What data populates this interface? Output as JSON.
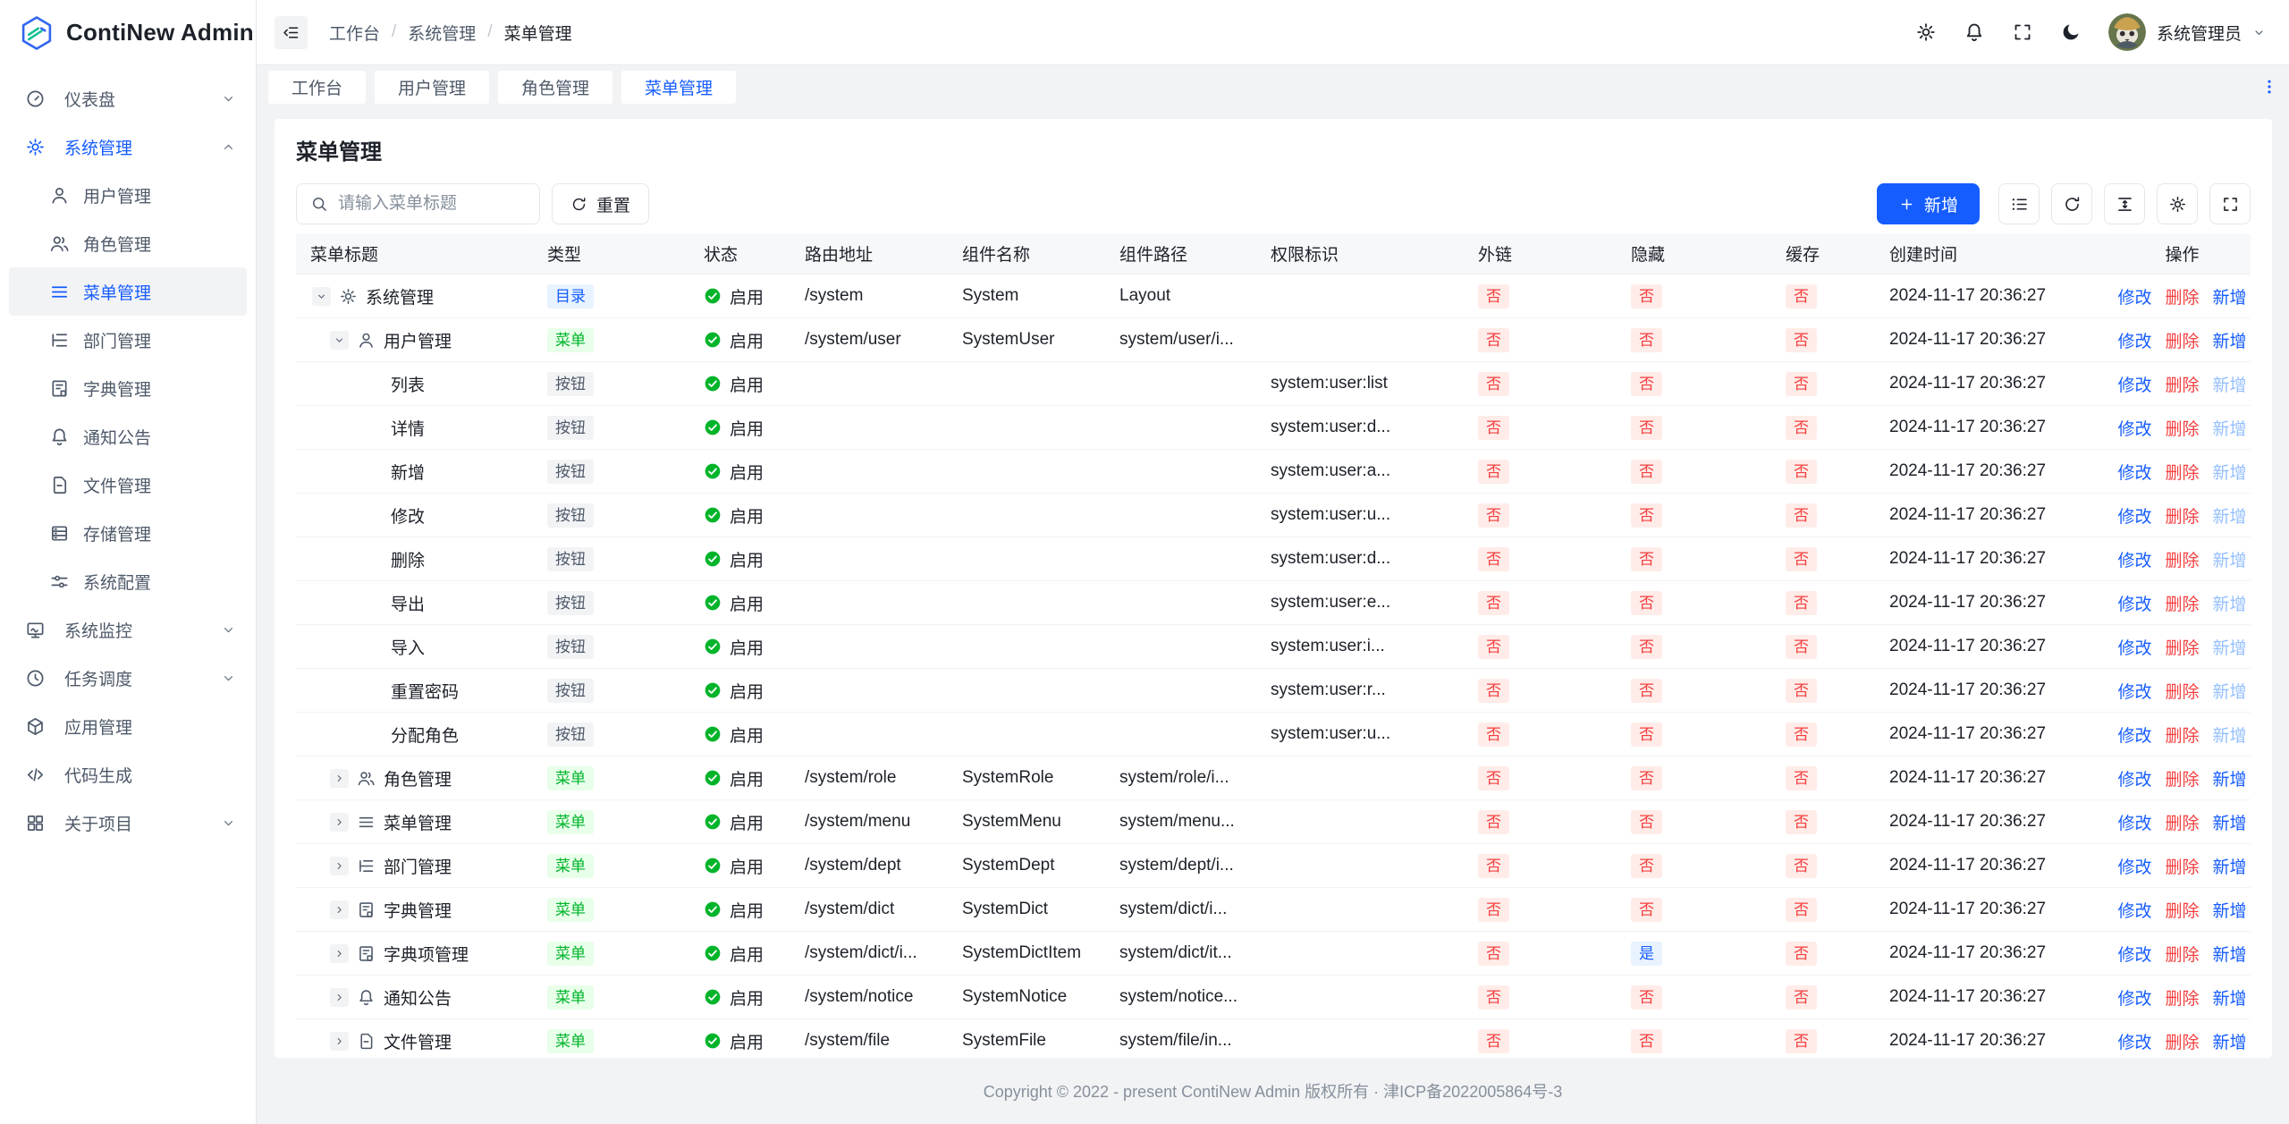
{
  "colors": {
    "primary": "#165dff",
    "success": "#00b42a",
    "danger": "#f53f3f",
    "tag_blue_bg": "#e8f3ff",
    "tag_green_bg": "#e8ffea",
    "tag_red_bg": "#ffece8",
    "tag_gray_bg": "#f2f3f5"
  },
  "app": {
    "title": "ContiNew Admin",
    "footer": "Copyright © 2022 - present ContiNew Admin 版权所有 · 津ICP备2022005864号-3"
  },
  "sidebar": {
    "items": [
      {
        "name": "dashboard",
        "icon": "dashboard",
        "label": "仪表盘",
        "chevron": "down"
      },
      {
        "name": "system-management",
        "icon": "gear",
        "label": "系统管理",
        "chevron": "up",
        "active": true,
        "children": [
          {
            "name": "user-management",
            "icon": "user",
            "label": "用户管理"
          },
          {
            "name": "role-management",
            "icon": "users",
            "label": "角色管理"
          },
          {
            "name": "menu-management",
            "icon": "menu",
            "label": "菜单管理",
            "active": true
          },
          {
            "name": "dept-management",
            "icon": "tree",
            "label": "部门管理"
          },
          {
            "name": "dict-management",
            "icon": "dict",
            "label": "字典管理"
          },
          {
            "name": "notice",
            "icon": "bell",
            "label": "通知公告"
          },
          {
            "name": "file-management",
            "icon": "file",
            "label": "文件管理"
          },
          {
            "name": "storage-management",
            "icon": "storage",
            "label": "存储管理"
          },
          {
            "name": "system-config",
            "icon": "sliders",
            "label": "系统配置"
          }
        ]
      },
      {
        "name": "system-monitor",
        "icon": "monitor",
        "label": "系统监控",
        "chevron": "down"
      },
      {
        "name": "task-schedule",
        "icon": "clock",
        "label": "任务调度",
        "chevron": "down"
      },
      {
        "name": "app-management",
        "icon": "cube",
        "label": "应用管理"
      },
      {
        "name": "code-generation",
        "icon": "code",
        "label": "代码生成"
      },
      {
        "name": "about-project",
        "icon": "grid",
        "label": "关于项目",
        "chevron": "down"
      }
    ]
  },
  "topbar": {
    "breadcrumb": [
      "工作台",
      "系统管理",
      "菜单管理"
    ],
    "separator": "/",
    "actions": [
      {
        "icon": "gear",
        "name": "settings-button"
      },
      {
        "icon": "bell",
        "name": "notifications-button"
      },
      {
        "icon": "fullscreen",
        "name": "fullscreen-button"
      },
      {
        "icon": "moon",
        "name": "dark-mode-button"
      }
    ],
    "user": {
      "name": "系统管理员"
    }
  },
  "tabs": {
    "active_index": 3,
    "items": [
      {
        "label": "工作台",
        "name": "workspace"
      },
      {
        "label": "用户管理",
        "name": "user-management"
      },
      {
        "label": "角色管理",
        "name": "role-management"
      },
      {
        "label": "菜单管理",
        "name": "menu-management"
      }
    ]
  },
  "page": {
    "title": "菜单管理",
    "search_placeholder": "请输入菜单标题",
    "reset_label": "重置",
    "add_label": "新增",
    "tool_buttons": [
      {
        "icon": "list",
        "name": "list-view-button"
      },
      {
        "icon": "refresh",
        "name": "refresh-button"
      },
      {
        "icon": "line-height",
        "name": "row-height-button"
      },
      {
        "icon": "gear",
        "name": "column-settings-button"
      },
      {
        "icon": "fullscreen",
        "name": "table-fullscreen-button"
      }
    ]
  },
  "table": {
    "columns": [
      {
        "key": "title",
        "label": "菜单标题"
      },
      {
        "key": "type",
        "label": "类型"
      },
      {
        "key": "status",
        "label": "状态"
      },
      {
        "key": "route",
        "label": "路由地址"
      },
      {
        "key": "component",
        "label": "组件名称"
      },
      {
        "key": "path",
        "label": "组件路径"
      },
      {
        "key": "perm",
        "label": "权限标识"
      },
      {
        "key": "external",
        "label": "外链"
      },
      {
        "key": "hidden",
        "label": "隐藏"
      },
      {
        "key": "cache",
        "label": "缓存"
      },
      {
        "key": "created",
        "label": "创建时间"
      },
      {
        "key": "actions",
        "label": "操作"
      }
    ],
    "action_labels": {
      "edit": "修改",
      "delete": "删除",
      "add": "新增"
    },
    "rows": [
      {
        "level": 0,
        "expand": "down",
        "icon": "gear",
        "title": "系统管理",
        "type": "目录",
        "status": "启用",
        "route": "/system",
        "component": "System",
        "path": "Layout",
        "perm": "",
        "external": "否",
        "hidden": "否",
        "cache": "否",
        "created": "2024-11-17 20:36:27",
        "can_add": true
      },
      {
        "level": 1,
        "expand": "down",
        "icon": "user",
        "title": "用户管理",
        "type": "菜单",
        "status": "启用",
        "route": "/system/user",
        "component": "SystemUser",
        "path": "system/user/i...",
        "perm": "",
        "external": "否",
        "hidden": "否",
        "cache": "否",
        "created": "2024-11-17 20:36:27",
        "can_add": true
      },
      {
        "level": 2,
        "expand": null,
        "icon": null,
        "title": "列表",
        "type": "按钮",
        "status": "启用",
        "route": "",
        "component": "",
        "path": "",
        "perm": "system:user:list",
        "external": "否",
        "hidden": "否",
        "cache": "否",
        "created": "2024-11-17 20:36:27",
        "can_add": false
      },
      {
        "level": 2,
        "expand": null,
        "icon": null,
        "title": "详情",
        "type": "按钮",
        "status": "启用",
        "route": "",
        "component": "",
        "path": "",
        "perm": "system:user:d...",
        "external": "否",
        "hidden": "否",
        "cache": "否",
        "created": "2024-11-17 20:36:27",
        "can_add": false
      },
      {
        "level": 2,
        "expand": null,
        "icon": null,
        "title": "新增",
        "type": "按钮",
        "status": "启用",
        "route": "",
        "component": "",
        "path": "",
        "perm": "system:user:a...",
        "external": "否",
        "hidden": "否",
        "cache": "否",
        "created": "2024-11-17 20:36:27",
        "can_add": false
      },
      {
        "level": 2,
        "expand": null,
        "icon": null,
        "title": "修改",
        "type": "按钮",
        "status": "启用",
        "route": "",
        "component": "",
        "path": "",
        "perm": "system:user:u...",
        "external": "否",
        "hidden": "否",
        "cache": "否",
        "created": "2024-11-17 20:36:27",
        "can_add": false
      },
      {
        "level": 2,
        "expand": null,
        "icon": null,
        "title": "删除",
        "type": "按钮",
        "status": "启用",
        "route": "",
        "component": "",
        "path": "",
        "perm": "system:user:d...",
        "external": "否",
        "hidden": "否",
        "cache": "否",
        "created": "2024-11-17 20:36:27",
        "can_add": false
      },
      {
        "level": 2,
        "expand": null,
        "icon": null,
        "title": "导出",
        "type": "按钮",
        "status": "启用",
        "route": "",
        "component": "",
        "path": "",
        "perm": "system:user:e...",
        "external": "否",
        "hidden": "否",
        "cache": "否",
        "created": "2024-11-17 20:36:27",
        "can_add": false
      },
      {
        "level": 2,
        "expand": null,
        "icon": null,
        "title": "导入",
        "type": "按钮",
        "status": "启用",
        "route": "",
        "component": "",
        "path": "",
        "perm": "system:user:i...",
        "external": "否",
        "hidden": "否",
        "cache": "否",
        "created": "2024-11-17 20:36:27",
        "can_add": false
      },
      {
        "level": 2,
        "expand": null,
        "icon": null,
        "title": "重置密码",
        "type": "按钮",
        "status": "启用",
        "route": "",
        "component": "",
        "path": "",
        "perm": "system:user:r...",
        "external": "否",
        "hidden": "否",
        "cache": "否",
        "created": "2024-11-17 20:36:27",
        "can_add": false
      },
      {
        "level": 2,
        "expand": null,
        "icon": null,
        "title": "分配角色",
        "type": "按钮",
        "status": "启用",
        "route": "",
        "component": "",
        "path": "",
        "perm": "system:user:u...",
        "external": "否",
        "hidden": "否",
        "cache": "否",
        "created": "2024-11-17 20:36:27",
        "can_add": false
      },
      {
        "level": 1,
        "expand": "right",
        "icon": "users",
        "title": "角色管理",
        "type": "菜单",
        "status": "启用",
        "route": "/system/role",
        "component": "SystemRole",
        "path": "system/role/i...",
        "perm": "",
        "external": "否",
        "hidden": "否",
        "cache": "否",
        "created": "2024-11-17 20:36:27",
        "can_add": true
      },
      {
        "level": 1,
        "expand": "right",
        "icon": "menu",
        "title": "菜单管理",
        "type": "菜单",
        "status": "启用",
        "route": "/system/menu",
        "component": "SystemMenu",
        "path": "system/menu...",
        "perm": "",
        "external": "否",
        "hidden": "否",
        "cache": "否",
        "created": "2024-11-17 20:36:27",
        "can_add": true
      },
      {
        "level": 1,
        "expand": "right",
        "icon": "tree",
        "title": "部门管理",
        "type": "菜单",
        "status": "启用",
        "route": "/system/dept",
        "component": "SystemDept",
        "path": "system/dept/i...",
        "perm": "",
        "external": "否",
        "hidden": "否",
        "cache": "否",
        "created": "2024-11-17 20:36:27",
        "can_add": true
      },
      {
        "level": 1,
        "expand": "right",
        "icon": "dict",
        "title": "字典管理",
        "type": "菜单",
        "status": "启用",
        "route": "/system/dict",
        "component": "SystemDict",
        "path": "system/dict/i...",
        "perm": "",
        "external": "否",
        "hidden": "否",
        "cache": "否",
        "created": "2024-11-17 20:36:27",
        "can_add": true
      },
      {
        "level": 1,
        "expand": "right",
        "icon": "dict",
        "title": "字典项管理",
        "type": "菜单",
        "status": "启用",
        "route": "/system/dict/i...",
        "component": "SystemDictItem",
        "path": "system/dict/it...",
        "perm": "",
        "external": "否",
        "hidden": "是",
        "cache": "否",
        "created": "2024-11-17 20:36:27",
        "can_add": true
      },
      {
        "level": 1,
        "expand": "right",
        "icon": "bell",
        "title": "通知公告",
        "type": "菜单",
        "status": "启用",
        "route": "/system/notice",
        "component": "SystemNotice",
        "path": "system/notice...",
        "perm": "",
        "external": "否",
        "hidden": "否",
        "cache": "否",
        "created": "2024-11-17 20:36:27",
        "can_add": true
      },
      {
        "level": 1,
        "expand": "right",
        "icon": "file",
        "title": "文件管理",
        "type": "菜单",
        "status": "启用",
        "route": "/system/file",
        "component": "SystemFile",
        "path": "system/file/in...",
        "perm": "",
        "external": "否",
        "hidden": "否",
        "cache": "否",
        "created": "2024-11-17 20:36:27",
        "can_add": true
      }
    ]
  }
}
